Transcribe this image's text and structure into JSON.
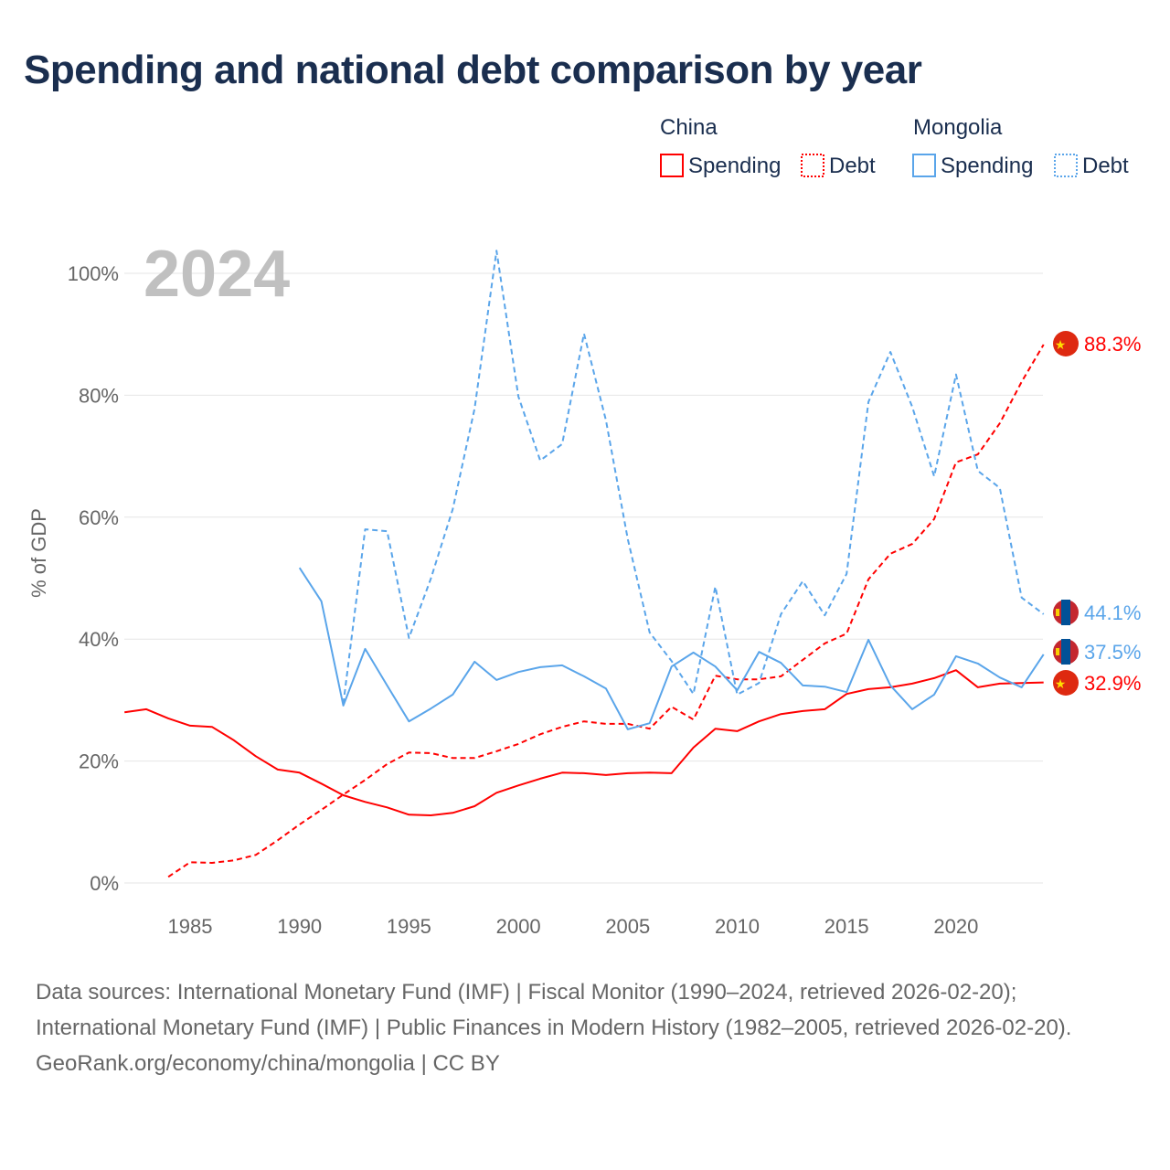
{
  "title": "Spending and national debt comparison by year",
  "footer": {
    "sources": "Data sources: International Monetary Fund (IMF) | Fiscal Monitor (1990–2024, retrieved 2026-02-20); International Monetary Fund (IMF) | Public Finances in Modern History (1982–2005, retrieved 2026-02-20).",
    "credit": "GeoRank.org/economy/china/mongolia | CC BY"
  },
  "chart_data": {
    "type": "line",
    "title": "Spending and national debt comparison by year",
    "year_label": "2024",
    "xlabel": "",
    "ylabel": "% of GDP",
    "xlim": [
      1982,
      2024
    ],
    "ylim": [
      0,
      105
    ],
    "x_ticks": [
      "1985",
      "1990",
      "1995",
      "2000",
      "2005",
      "2010",
      "2015",
      "2020"
    ],
    "y_ticks": [
      "0%",
      "20%",
      "40%",
      "60%",
      "80%",
      "100%"
    ],
    "grid": true,
    "legend": {
      "placement": "top-right",
      "groups": [
        {
          "name": "China",
          "items": [
            "Spending",
            "Debt"
          ]
        },
        {
          "name": "Mongolia",
          "items": [
            "Spending",
            "Debt"
          ]
        }
      ]
    },
    "series": [
      {
        "name": "China Spending",
        "country": "China",
        "color": "#ff0000",
        "dashed": false,
        "start": 1982,
        "values": [
          28.0,
          28.5,
          27.0,
          25.8,
          25.6,
          23.4,
          20.8,
          18.6,
          18.1,
          16.3,
          14.4,
          13.3,
          12.4,
          11.2,
          11.1,
          11.5,
          12.6,
          14.8,
          16.0,
          17.1,
          18.1,
          18.0,
          17.7,
          18.0,
          18.1,
          18.0,
          22.2,
          25.3,
          24.9,
          26.5,
          27.7,
          28.2,
          28.5,
          31.0,
          31.8,
          32.1,
          32.7,
          33.6,
          34.9,
          32.1,
          32.7,
          32.8,
          32.9
        ],
        "end_label": "32.9%"
      },
      {
        "name": "China Debt",
        "country": "China",
        "color": "#ff0000",
        "dashed": true,
        "start": 1984,
        "values": [
          1.0,
          3.4,
          3.3,
          3.7,
          4.6,
          7.0,
          9.6,
          12.0,
          14.5,
          16.9,
          19.5,
          21.4,
          21.3,
          20.5,
          20.5,
          21.6,
          22.8,
          24.4,
          25.6,
          26.5,
          26.1,
          26.1,
          25.3,
          28.9,
          26.8,
          34.0,
          33.4,
          33.4,
          33.9,
          36.6,
          39.3,
          40.9,
          49.8,
          54.0,
          55.6,
          59.7,
          69.0,
          70.3,
          75.4,
          82.2,
          88.3
        ],
        "end_label": "88.3%"
      },
      {
        "name": "Mongolia Spending",
        "country": "Mongolia",
        "color": "#5aa5ea",
        "dashed": false,
        "start": 1990,
        "values": [
          51.7,
          46.2,
          29.1,
          38.4,
          32.4,
          26.5,
          28.6,
          30.9,
          36.3,
          33.3,
          34.6,
          35.4,
          35.7,
          33.9,
          31.9,
          25.2,
          26.2,
          35.5,
          37.8,
          35.5,
          31.6,
          37.9,
          36.1,
          32.4,
          32.2,
          31.3,
          39.9,
          32.4,
          28.5,
          30.9,
          37.2,
          36.0,
          33.7,
          32.1,
          37.5
        ],
        "end_label": "37.5%"
      },
      {
        "name": "Mongolia Debt",
        "country": "Mongolia",
        "color": "#5aa5ea",
        "dashed": true,
        "start": 1992,
        "values": [
          29.4,
          58.0,
          57.7,
          40.2,
          49.9,
          61.3,
          77.8,
          103.7,
          79.8,
          69.3,
          72.0,
          90.1,
          75.9,
          56.4,
          41.1,
          36.4,
          31.0,
          48.6,
          30.9,
          32.8,
          44.1,
          49.5,
          43.9,
          50.7,
          78.9,
          87.1,
          78.1,
          66.7,
          83.4,
          67.6,
          64.8,
          46.8,
          44.1
        ],
        "end_label": "44.1%"
      }
    ]
  }
}
